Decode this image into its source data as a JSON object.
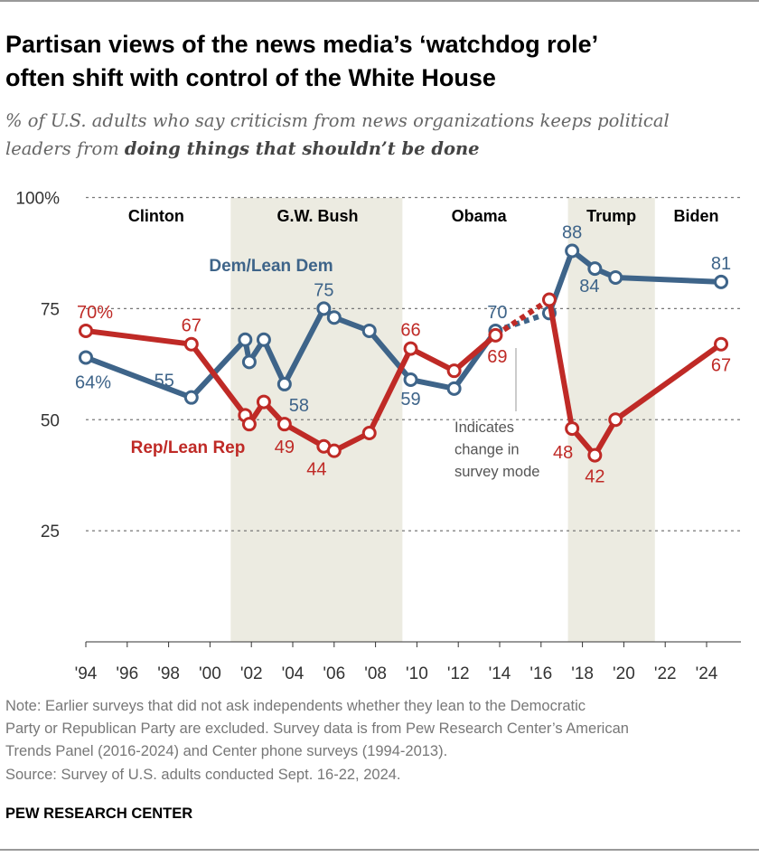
{
  "title": [
    "Partisan views of the news media’s ‘watchdog role’",
    "often shift with control of the White House"
  ],
  "subtitle": {
    "line1": "% of U.S. adults who say criticism from news organizations keeps political",
    "line2_plain": "leaders from ",
    "line2_bold": "doing things that shouldn’t be done"
  },
  "chart_data": {
    "type": "line",
    "ylim": [
      0,
      100
    ],
    "xlim": [
      1994,
      2025
    ],
    "yticks": [
      {
        "v": 100,
        "label": "100%"
      },
      {
        "v": 75,
        "label": "75"
      },
      {
        "v": 50,
        "label": "50"
      },
      {
        "v": 25,
        "label": "25"
      }
    ],
    "xticks": [
      {
        "v": 1994,
        "label": "'94"
      },
      {
        "v": 1996,
        "label": "'96"
      },
      {
        "v": 1998,
        "label": "'98"
      },
      {
        "v": 2000,
        "label": "'00"
      },
      {
        "v": 2002,
        "label": "'02"
      },
      {
        "v": 2004,
        "label": "'04"
      },
      {
        "v": 2006,
        "label": "'06"
      },
      {
        "v": 2008,
        "label": "'08"
      },
      {
        "v": 2010,
        "label": "'10"
      },
      {
        "v": 2012,
        "label": "'12"
      },
      {
        "v": 2014,
        "label": "'14"
      },
      {
        "v": 2016,
        "label": "'16"
      },
      {
        "v": 2018,
        "label": "'18"
      },
      {
        "v": 2020,
        "label": "'20"
      },
      {
        "v": 2022,
        "label": "'22"
      },
      {
        "v": 2024,
        "label": "'24"
      }
    ],
    "grid": true,
    "x": [
      1994,
      1999.1,
      2001.7,
      2001.9,
      2002.6,
      2003.6,
      2005.5,
      2006,
      2007.7,
      2009.7,
      2011.8,
      2013.8,
      2016.4,
      2017.5,
      2018.6,
      2019.6,
      2024.7
    ],
    "series": [
      {
        "name": "Dem/Lean Dem",
        "color": "#3e6489",
        "values": [
          64,
          55,
          68,
          63,
          68,
          58,
          75,
          73,
          70,
          59,
          57,
          70,
          74,
          88,
          84,
          82,
          81
        ],
        "labels": [
          "64%",
          "55",
          "",
          "",
          "",
          "58",
          "75",
          "",
          "",
          "59",
          "",
          "70",
          "",
          "88",
          "84",
          "",
          "81"
        ]
      },
      {
        "name": "Rep/Lean Rep",
        "color": "#bf2a26",
        "values": [
          70,
          67,
          51,
          49,
          54,
          49,
          44,
          43,
          47,
          66,
          61,
          69,
          77,
          48,
          42,
          50,
          67
        ],
        "labels": [
          "70%",
          "67",
          "",
          "",
          "",
          "49",
          "44",
          "",
          "",
          "66",
          "",
          "69",
          "",
          "48",
          "42",
          "",
          "67"
        ]
      }
    ],
    "mode_change_segment": [
      11,
      12
    ],
    "shaded_periods": [
      {
        "from": 2001,
        "to": 2009.3,
        "color": "#ecebe1"
      },
      {
        "from": 2017.3,
        "to": 2021.5,
        "color": "#ecebe1"
      }
    ],
    "eras": [
      {
        "label": "Clinton",
        "x": 1997.4
      },
      {
        "label": "G.W. Bush",
        "x": 2005.2
      },
      {
        "label": "Obama",
        "x": 2013
      },
      {
        "label": "Trump",
        "x": 2019.4
      },
      {
        "label": "Biden",
        "x": 2023.5
      }
    ],
    "annotation": [
      "Indicates",
      "change in",
      "survey mode"
    ]
  },
  "note": [
    "Note: Earlier surveys that did not ask independents whether they lean to the Democratic",
    "Party or Republican Party are excluded. Survey data is from Pew Research Center’s American",
    "Trends Panel (2016-2024) and Center phone surveys (1994-2013)."
  ],
  "source": "Source: Survey of U.S. adults conducted Sept. 16-22, 2024.",
  "brand": "PEW RESEARCH CENTER"
}
